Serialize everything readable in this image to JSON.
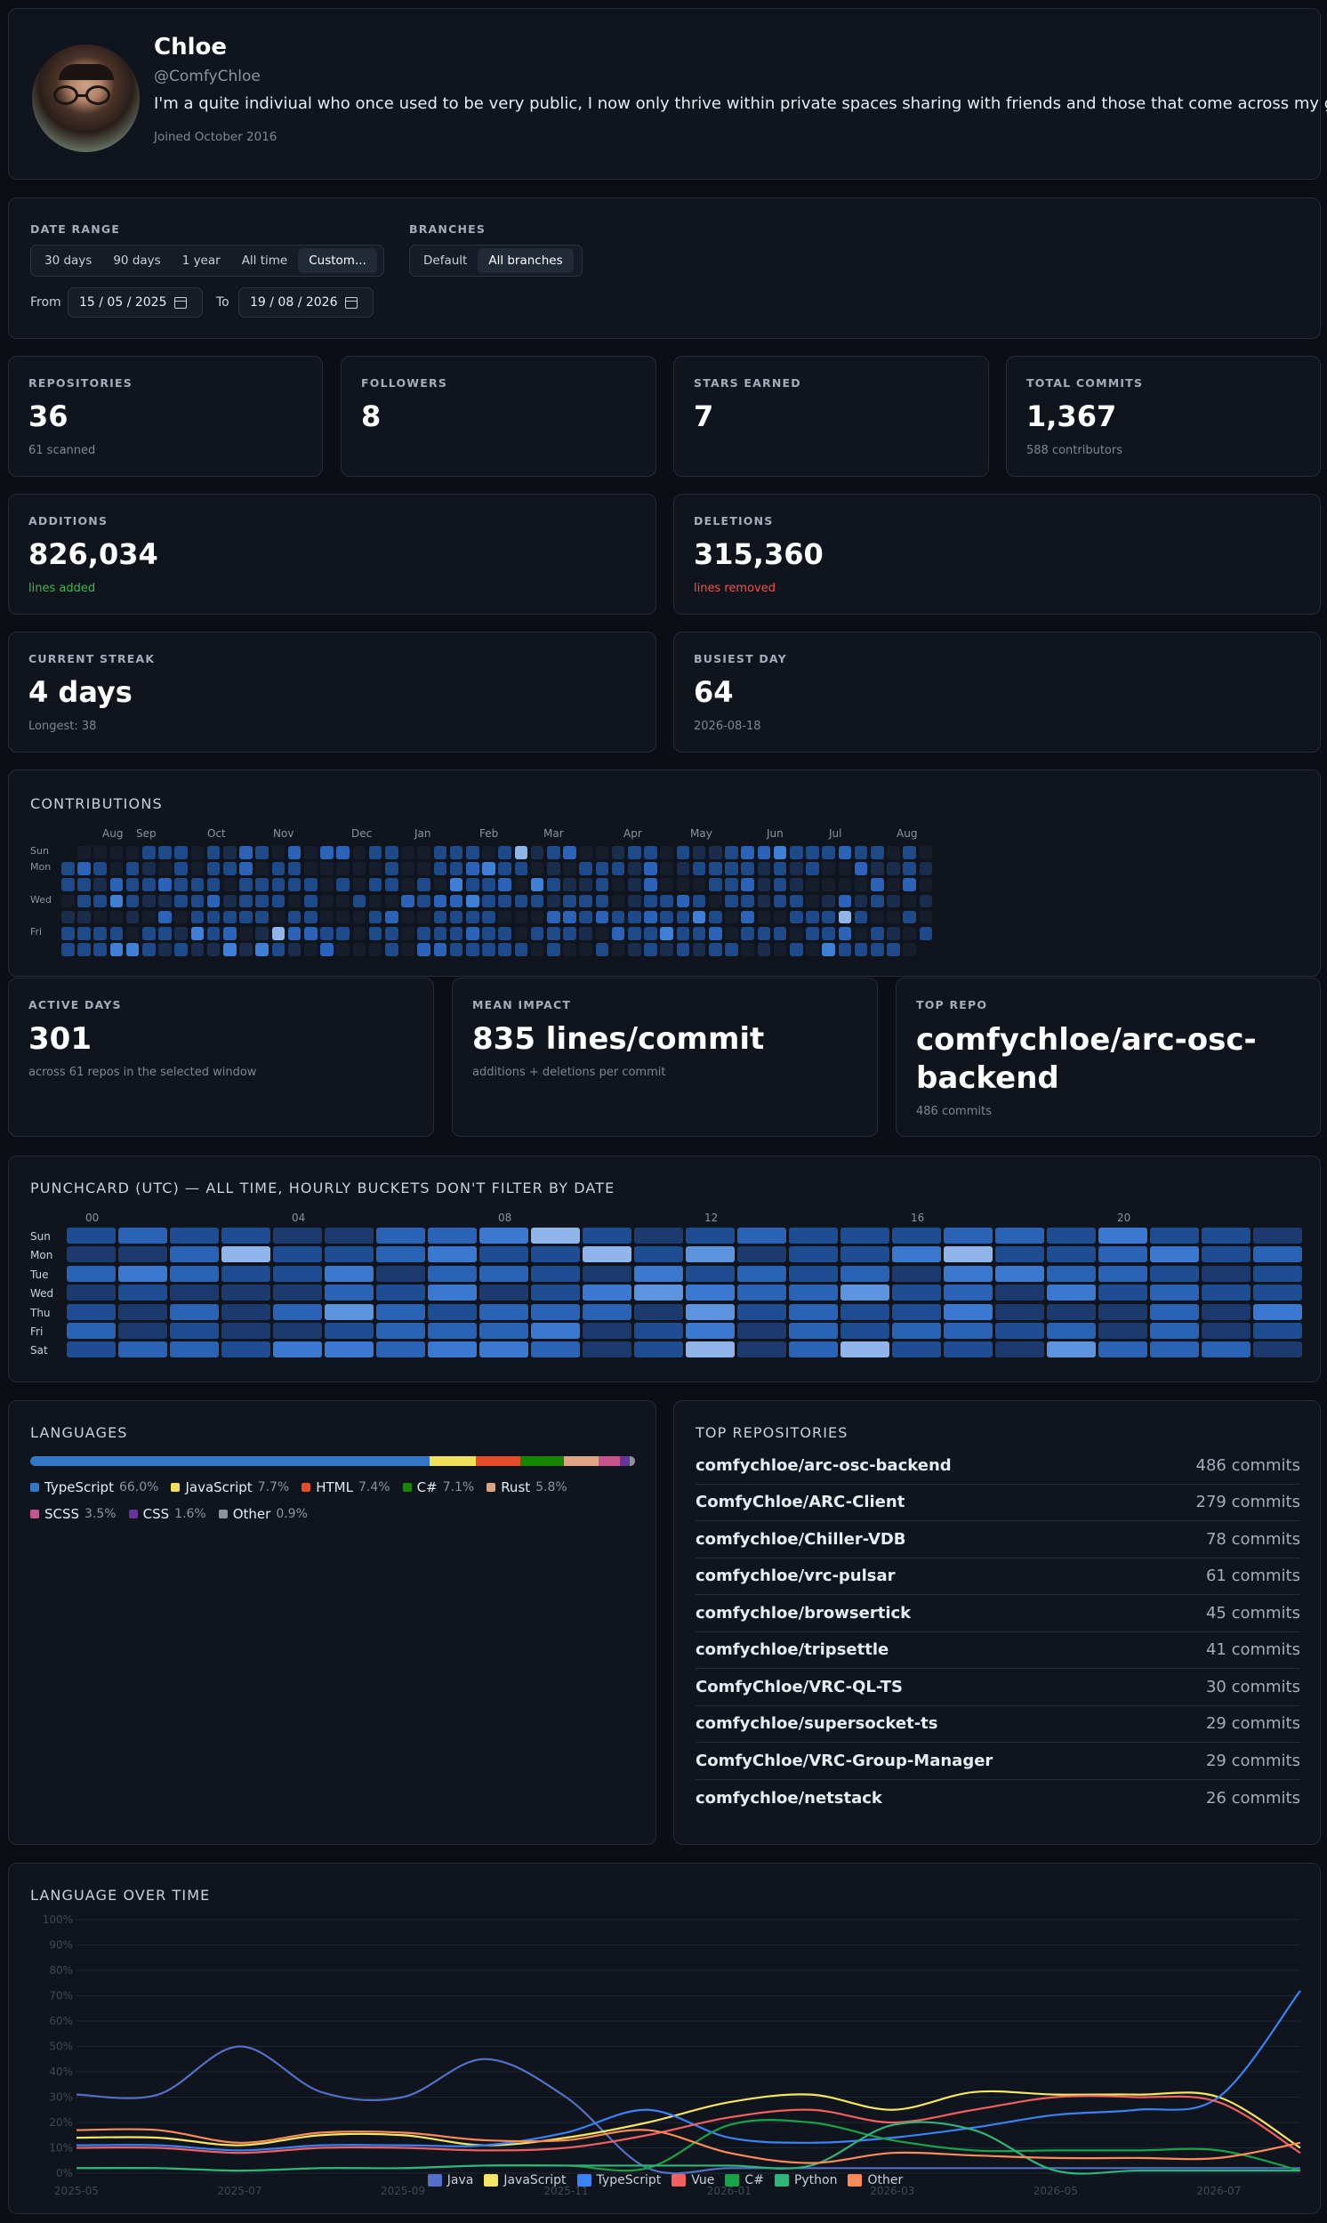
{
  "profile": {
    "name": "Chloe",
    "handle": "@ComfyChloe",
    "bio": "I'm a quite indiviual who once used to be very public, I now only thrive within private spaces sharing with friends and those that come across my github.",
    "joined": "Joined October 2016"
  },
  "filters": {
    "date_range_label": "DATE RANGE",
    "ranges": [
      "30 days",
      "90 days",
      "1 year",
      "All time",
      "Custom..."
    ],
    "active_range": "Custom...",
    "branches_label": "BRANCHES",
    "branches": [
      "Default",
      "All branches"
    ],
    "active_branch": "All branches",
    "from_label": "From",
    "from_value": "15 / 05 / 2025",
    "to_label": "To",
    "to_value": "19 / 08 / 2026"
  },
  "stats": {
    "repositories": {
      "label": "REPOSITORIES",
      "value": "36",
      "sub": "61 scanned"
    },
    "followers": {
      "label": "FOLLOWERS",
      "value": "8",
      "sub": ""
    },
    "stars": {
      "label": "STARS EARNED",
      "value": "7",
      "sub": ""
    },
    "commits": {
      "label": "TOTAL COMMITS",
      "value": "1,367",
      "sub": "588 contributors"
    },
    "additions": {
      "label": "ADDITIONS",
      "value": "826,034",
      "sub": "lines added"
    },
    "deletions": {
      "label": "DELETIONS",
      "value": "315,360",
      "sub": "lines removed"
    },
    "streak": {
      "label": "CURRENT STREAK",
      "value": "4 days",
      "sub": "Longest: 38"
    },
    "busiest": {
      "label": "BUSIEST DAY",
      "value": "64",
      "sub": "2026-08-18"
    },
    "active_days": {
      "label": "ACTIVE DAYS",
      "value": "301",
      "sub": "across 61 repos in the selected window"
    },
    "mean_impact": {
      "label": "MEAN IMPACT",
      "value": "835 lines/commit",
      "sub": "additions + deletions per commit"
    },
    "top_repo": {
      "label": "TOP REPO",
      "value": "comfychloe/arc-osc-backend",
      "sub": "486 commits"
    }
  },
  "contributions": {
    "title": "CONTRIBUTIONS",
    "months": [
      "Aug",
      "Sep",
      "Oct",
      "Nov",
      "Dec",
      "Jan",
      "Feb",
      "Mar",
      "Apr",
      "May",
      "Jun",
      "Jul",
      "Aug"
    ],
    "day_labels": [
      "Sun",
      "Mon",
      "",
      "Wed",
      "",
      "Fri",
      ""
    ]
  },
  "punchcard": {
    "title": "PUNCHCARD (UTC) — ALL TIME, HOURLY BUCKETS DON'T FILTER BY DATE",
    "hour_labels": [
      "00",
      "04",
      "08",
      "12",
      "16",
      "20"
    ],
    "days": [
      "Sun",
      "Mon",
      "Tue",
      "Wed",
      "Thu",
      "Fri",
      "Sat"
    ]
  },
  "languages": {
    "title": "LANGUAGES",
    "items": [
      {
        "name": "TypeScript",
        "pct": "66.0%",
        "value": 66.0,
        "color": "#3178c6"
      },
      {
        "name": "JavaScript",
        "pct": "7.7%",
        "value": 7.7,
        "color": "#f1e05a"
      },
      {
        "name": "HTML",
        "pct": "7.4%",
        "value": 7.4,
        "color": "#e34c26"
      },
      {
        "name": "C#",
        "pct": "7.1%",
        "value": 7.1,
        "color": "#178600"
      },
      {
        "name": "Rust",
        "pct": "5.8%",
        "value": 5.8,
        "color": "#dea584"
      },
      {
        "name": "SCSS",
        "pct": "3.5%",
        "value": 3.5,
        "color": "#c6538c"
      },
      {
        "name": "CSS",
        "pct": "1.6%",
        "value": 1.6,
        "color": "#663399"
      },
      {
        "name": "Other",
        "pct": "0.9%",
        "value": 0.9,
        "color": "#8b949e"
      }
    ]
  },
  "top_repos": {
    "title": "TOP REPOSITORIES",
    "items": [
      {
        "name": "comfychloe/arc-osc-backend",
        "commits": "486 commits"
      },
      {
        "name": "ComfyChloe/ARC-Client",
        "commits": "279 commits"
      },
      {
        "name": "comfychloe/Chiller-VDB",
        "commits": "78 commits"
      },
      {
        "name": "comfychloe/vrc-pulsar",
        "commits": "61 commits"
      },
      {
        "name": "comfychloe/browsertick",
        "commits": "45 commits"
      },
      {
        "name": "comfychloe/tripsettle",
        "commits": "41 commits"
      },
      {
        "name": "ComfyChloe/VRC-QL-TS",
        "commits": "30 commits"
      },
      {
        "name": "comfychloe/supersocket-ts",
        "commits": "29 commits"
      },
      {
        "name": "ComfyChloe/VRC-Group-Manager",
        "commits": "29 commits"
      },
      {
        "name": "comfychloe/netstack",
        "commits": "26 commits"
      }
    ]
  },
  "chart_data": {
    "type": "line",
    "title": "LANGUAGE OVER TIME",
    "x": [
      "2025-05",
      "2025-06",
      "2025-07",
      "2025-08",
      "2025-09",
      "2025-10",
      "2025-11",
      "2025-12",
      "2026-01",
      "2026-02",
      "2026-03",
      "2026-04",
      "2026-05",
      "2026-06",
      "2026-07",
      "2026-08"
    ],
    "x_tick_labels": [
      "2025-05",
      "2025-07",
      "2025-09",
      "2025-11",
      "2026-01",
      "2026-03",
      "2026-05",
      "2026-07"
    ],
    "y_tick_labels": [
      "0%",
      "10%",
      "20%",
      "30%",
      "40%",
      "50%",
      "60%",
      "70%",
      "80%",
      "90%",
      "100%"
    ],
    "ylim": [
      0,
      100
    ],
    "grid": true,
    "legend": "bottom",
    "series": [
      {
        "name": "Java",
        "color": "#5470c6",
        "values": [
          31,
          31,
          50,
          32,
          30,
          45,
          30,
          2,
          2,
          2,
          2,
          2,
          2,
          2,
          2,
          2
        ]
      },
      {
        "name": "JavaScript",
        "color": "#f5e663",
        "values": [
          14,
          14,
          11,
          15,
          15,
          11,
          14,
          20,
          28,
          31,
          25,
          32,
          31,
          31,
          30,
          10
        ]
      },
      {
        "name": "TypeScript",
        "color": "#3b82f6",
        "values": [
          11,
          11,
          9,
          11,
          11,
          11,
          16,
          25,
          14,
          12,
          14,
          18,
          23,
          25,
          30,
          72
        ]
      },
      {
        "name": "Vue",
        "color": "#f06060",
        "values": [
          10,
          10,
          8,
          10,
          10,
          9,
          10,
          15,
          22,
          25,
          20,
          25,
          30,
          30,
          28,
          8
        ]
      },
      {
        "name": "C#",
        "color": "#16a34a",
        "values": [
          2,
          2,
          1,
          2,
          2,
          3,
          3,
          2,
          19,
          20,
          13,
          9,
          9,
          9,
          9,
          1
        ]
      },
      {
        "name": "Python",
        "color": "#2fb67a",
        "values": [
          2,
          2,
          1,
          2,
          2,
          3,
          3,
          3,
          3,
          3,
          19,
          17,
          1,
          1,
          1,
          1
        ]
      },
      {
        "name": "Other",
        "color": "#fb8c5a",
        "values": [
          17,
          17,
          12,
          16,
          16,
          13,
          13,
          17,
          8,
          4,
          8,
          7,
          6,
          6,
          6,
          12
        ]
      }
    ]
  }
}
